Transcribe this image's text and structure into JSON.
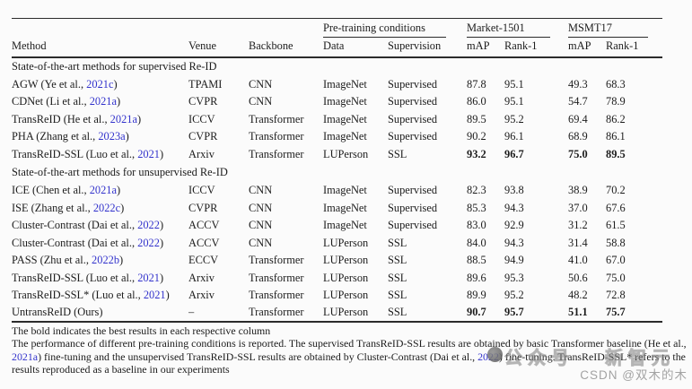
{
  "table": {
    "groups": [
      {
        "label": "Pre-training conditions"
      },
      {
        "label": "Market-1501"
      },
      {
        "label": "MSMT17"
      }
    ],
    "columns": [
      "Method",
      "Venue",
      "Backbone",
      "Data",
      "Supervision",
      "mAP",
      "Rank-1",
      "mAP",
      "Rank-1"
    ],
    "sections": [
      {
        "label": "State-of-the-art methods for supervised Re-ID",
        "rows": [
          {
            "method": [
              "AGW (Ye et al., ",
              "2021c",
              ")"
            ],
            "venue": "TPAMI",
            "backbone": "CNN",
            "pdata": "ImageNet",
            "supervision": "Supervised",
            "results": [
              "87.8",
              "95.1",
              "49.3",
              "68.3"
            ],
            "bold": false
          },
          {
            "method": [
              "CDNet (Li et al., ",
              "2021a",
              ")"
            ],
            "venue": "CVPR",
            "backbone": "CNN",
            "pdata": "ImageNet",
            "supervision": "Supervised",
            "results": [
              "86.0",
              "95.1",
              "54.7",
              "78.9"
            ],
            "bold": false
          },
          {
            "method": [
              "TransReID (He et al., ",
              "2021a",
              ")"
            ],
            "venue": "ICCV",
            "backbone": "Transformer",
            "pdata": "ImageNet",
            "supervision": "Supervised",
            "results": [
              "89.5",
              "95.2",
              "69.4",
              "86.2"
            ],
            "bold": false
          },
          {
            "method": [
              "PHA (Zhang et al., ",
              "2023a",
              ")"
            ],
            "venue": "CVPR",
            "backbone": "Transformer",
            "pdata": "ImageNet",
            "supervision": "Supervised",
            "results": [
              "90.2",
              "96.1",
              "68.9",
              "86.1"
            ],
            "bold": false
          },
          {
            "method": [
              "TransReID-SSL (Luo et al., ",
              "2021",
              ")"
            ],
            "venue": "Arxiv",
            "backbone": "Transformer",
            "pdata": "LUPerson",
            "supervision": "SSL",
            "results": [
              "93.2",
              "96.7",
              "75.0",
              "89.5"
            ],
            "bold": true
          }
        ]
      },
      {
        "label": "State-of-the-art methods for unsupervised Re-ID",
        "rows": [
          {
            "method": [
              "ICE (Chen et al., ",
              "2021a",
              ")"
            ],
            "venue": "ICCV",
            "backbone": "CNN",
            "pdata": "ImageNet",
            "supervision": "Supervised",
            "results": [
              "82.3",
              "93.8",
              "38.9",
              "70.2"
            ],
            "bold": false
          },
          {
            "method": [
              "ISE (Zhang et al., ",
              "2022c",
              ")"
            ],
            "venue": "CVPR",
            "backbone": "CNN",
            "pdata": "ImageNet",
            "supervision": "Supervised",
            "results": [
              "85.3",
              "94.3",
              "37.0",
              "67.6"
            ],
            "bold": false
          },
          {
            "method": [
              "Cluster-Contrast (Dai et al., ",
              "2022",
              ")"
            ],
            "venue": "ACCV",
            "backbone": "CNN",
            "pdata": "ImageNet",
            "supervision": "Supervised",
            "results": [
              "83.0",
              "92.9",
              "31.2",
              "61.5"
            ],
            "bold": false
          },
          {
            "method": [
              "Cluster-Contrast (Dai et al., ",
              "2022",
              ")"
            ],
            "venue": "ACCV",
            "backbone": "CNN",
            "pdata": "LUPerson",
            "supervision": "SSL",
            "results": [
              "84.0",
              "94.3",
              "31.4",
              "58.8"
            ],
            "bold": false
          },
          {
            "method": [
              "PASS (Zhu et al., ",
              "2022b",
              ")"
            ],
            "venue": "ECCV",
            "backbone": "Transformer",
            "pdata": "LUPerson",
            "supervision": "SSL",
            "results": [
              "88.5",
              "94.9",
              "41.0",
              "67.0"
            ],
            "bold": false
          },
          {
            "method": [
              "TransReID-SSL (Luo et al., ",
              "2021",
              ")"
            ],
            "venue": "Arxiv",
            "backbone": "Transformer",
            "pdata": "LUPerson",
            "supervision": "SSL",
            "results": [
              "89.6",
              "95.3",
              "50.6",
              "75.0"
            ],
            "bold": false
          },
          {
            "method": [
              "TransReID-SSL* (Luo et al., ",
              "2021",
              ")"
            ],
            "venue": "Arxiv",
            "backbone": "Transformer",
            "pdata": "LUPerson",
            "supervision": "SSL",
            "results": [
              "89.9",
              "95.2",
              "48.2",
              "72.8"
            ],
            "bold": false
          },
          {
            "method": [
              "UntransReID (Ours)",
              "",
              ""
            ],
            "venue": "–",
            "backbone": "Transformer",
            "pdata": "LUPerson",
            "supervision": "SSL",
            "results": [
              "90.7",
              "95.7",
              "51.1",
              "75.7"
            ],
            "bold": true
          }
        ]
      }
    ]
  },
  "footnotes": {
    "note1": "The bold indicates the best results in each respective column",
    "note2_segments": [
      {
        "text": "The performance of different pre-training conditions is reported. The supervised TransReID-SSL results are obtained by basic Transformer baseline (He et al., ",
        "cite": false
      },
      {
        "text": "2021a",
        "cite": true
      },
      {
        "text": ") fine-tuning and the unsupervised TransReID-SSL results are obtained by Cluster-Contrast (Dai et al., ",
        "cite": false
      },
      {
        "text": "2022",
        "cite": true
      },
      {
        "text": ") fine-tuning. TransReID-SSL* refers to the results reproduced as a baseline in our experiments",
        "cite": false
      }
    ]
  },
  "watermarks": {
    "center_text_1": "公众号",
    "center_text_2": "新智元",
    "csdn": "CSDN @双木的木"
  },
  "colors": {
    "link_blue": "#3333cc",
    "text": "#1c1c1c",
    "rule": "#2b2b2b",
    "watermark_gray": "#969696"
  }
}
